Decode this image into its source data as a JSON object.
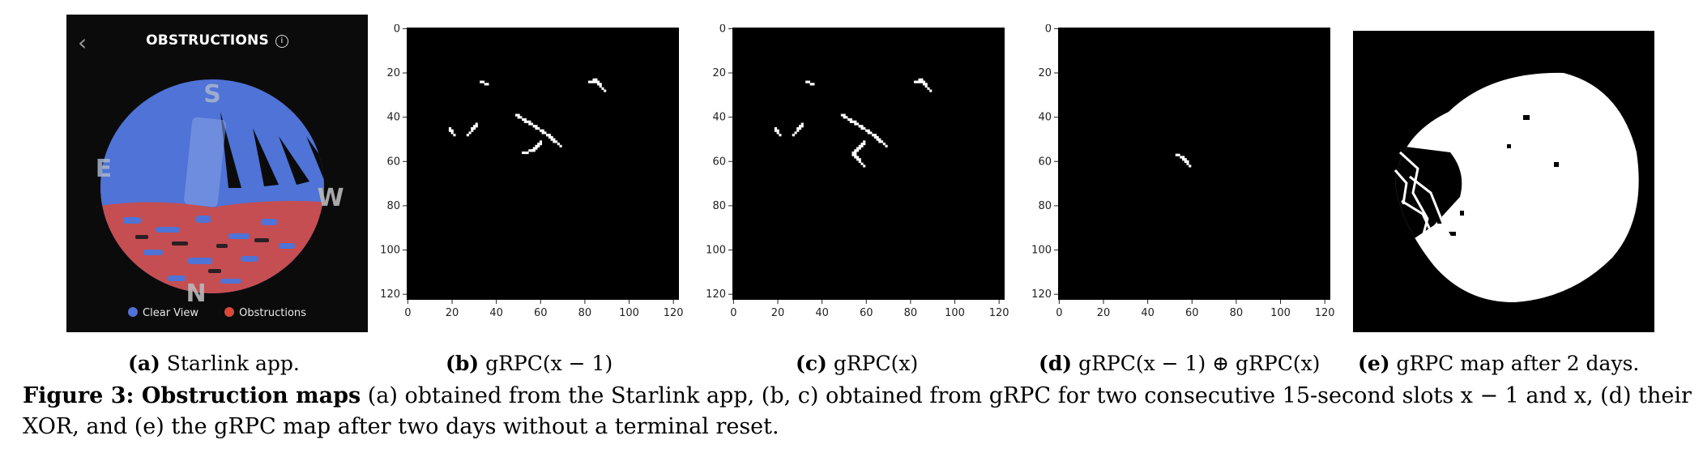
{
  "panel_a": {
    "back_glyph": "‹",
    "title": "OBSTRUCTIONS",
    "info_glyph": "i",
    "compass": {
      "south": "S",
      "east": "E",
      "west": "W",
      "north": "N"
    },
    "legend": [
      {
        "label": "Clear View",
        "color": "#4f73d6"
      },
      {
        "label": "Obstructions",
        "color": "#d9483b"
      }
    ]
  },
  "axes": {
    "x_ticks": [
      "0",
      "20",
      "40",
      "60",
      "80",
      "100",
      "120"
    ],
    "y_ticks": [
      "0",
      "20",
      "40",
      "60",
      "80",
      "100",
      "120"
    ]
  },
  "subcaptions": {
    "a": {
      "tag": "(a)",
      "text": " Starlink app."
    },
    "b": {
      "tag": "(b)",
      "text": " gRPC(x − 1)"
    },
    "c": {
      "tag": "(c)",
      "text": " gRPC(x)"
    },
    "d": {
      "tag": "(d)",
      "text": " gRPC(x − 1) ⊕ gRPC(x)"
    },
    "e": {
      "tag": "(e)",
      "text": " gRPC map after 2 days."
    }
  },
  "caption": {
    "label": "Figure 3: Obstruction maps",
    "text": " (a) obtained from the Starlink app, (b, c) obtained from gRPC for two consecutive 15-second slots x − 1 and x, (d) their XOR, and (e) the gRPC map after two days without a terminal reset."
  },
  "colors": {
    "clear": "#4f73d6",
    "obstruction": "#d9483b",
    "background": "#000000",
    "pixel": "#ffffff"
  },
  "chart_data": [
    {
      "type": "heatmap",
      "panel": "b",
      "grid_size": [
        123,
        123
      ],
      "xlim": [
        0,
        122
      ],
      "ylim": [
        0,
        122
      ],
      "segments": [
        [
          [
            33,
            24
          ],
          [
            36,
            25
          ]
        ],
        [
          [
            82,
            24
          ],
          [
            85,
            23
          ],
          [
            89,
            28
          ]
        ],
        [
          [
            19,
            45
          ],
          [
            21,
            48
          ]
        ],
        [
          [
            27,
            48
          ],
          [
            31,
            43
          ]
        ],
        [
          [
            49,
            39
          ],
          [
            57,
            44
          ],
          [
            63,
            48
          ],
          [
            69,
            53
          ]
        ],
        [
          [
            52,
            56
          ],
          [
            56,
            55
          ],
          [
            60,
            51
          ]
        ]
      ]
    },
    {
      "type": "heatmap",
      "panel": "c",
      "grid_size": [
        123,
        123
      ],
      "xlim": [
        0,
        122
      ],
      "ylim": [
        0,
        122
      ],
      "segments": [
        [
          [
            33,
            24
          ],
          [
            36,
            25
          ]
        ],
        [
          [
            82,
            24
          ],
          [
            85,
            23
          ],
          [
            89,
            28
          ]
        ],
        [
          [
            19,
            45
          ],
          [
            21,
            48
          ]
        ],
        [
          [
            27,
            48
          ],
          [
            31,
            43
          ]
        ],
        [
          [
            49,
            39
          ],
          [
            57,
            44
          ],
          [
            63,
            48
          ],
          [
            69,
            53
          ]
        ],
        [
          [
            59,
            51
          ],
          [
            54,
            56
          ],
          [
            59,
            62
          ]
        ]
      ]
    },
    {
      "type": "heatmap",
      "panel": "d",
      "grid_size": [
        123,
        123
      ],
      "xlim": [
        0,
        122
      ],
      "ylim": [
        0,
        122
      ],
      "segments": [
        [
          [
            53,
            57
          ],
          [
            56,
            58
          ],
          [
            59,
            62
          ]
        ]
      ]
    }
  ]
}
